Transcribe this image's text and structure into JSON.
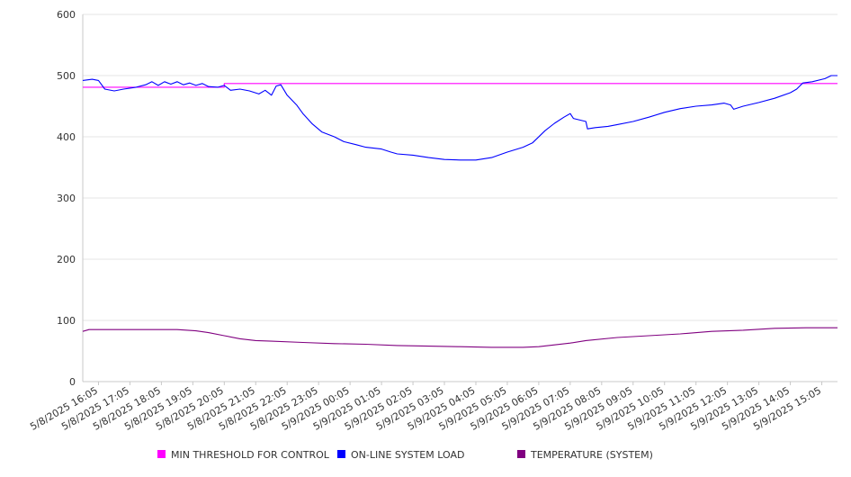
{
  "chart_data": {
    "type": "line",
    "title": "",
    "xlabel": "",
    "ylabel": "",
    "ylim": [
      0,
      600
    ],
    "y_ticks": [
      0,
      100,
      200,
      300,
      400,
      500,
      600
    ],
    "x_tick_labels": [
      "5/8/2025 16:05",
      "5/8/2025 17:05",
      "5/8/2025 18:05",
      "5/8/2025 19:05",
      "5/8/2025 20:05",
      "5/8/2025 21:05",
      "5/8/2025 22:05",
      "5/8/2025 23:05",
      "5/9/2025 00:05",
      "5/9/2025 01:05",
      "5/9/2025 02:05",
      "5/9/2025 03:05",
      "5/9/2025 04:05",
      "5/9/2025 05:05",
      "5/9/2025 06:05",
      "5/9/2025 07:05",
      "5/9/2025 08:05",
      "5/9/2025 09:05",
      "5/9/2025 10:05",
      "5/9/2025 11:05",
      "5/9/2025 12:05",
      "5/9/2025 13:05",
      "5/9/2025 14:05",
      "5/9/2025 15:05"
    ],
    "grid": "horizontal",
    "legend_position": "bottom",
    "series": [
      {
        "name": "MIN THRESHOLD FOR CONTROL",
        "color": "#ff00ff",
        "points": [
          [
            0,
            481
          ],
          [
            4.5,
            481
          ],
          [
            4.5,
            487
          ],
          [
            24,
            487
          ]
        ]
      },
      {
        "name": "ON-LINE SYSTEM LOAD",
        "color": "#0000ff",
        "points": [
          [
            0,
            492
          ],
          [
            0.3,
            494
          ],
          [
            0.5,
            492
          ],
          [
            0.7,
            478
          ],
          [
            1,
            475
          ],
          [
            1.3,
            478
          ],
          [
            1.7,
            481
          ],
          [
            2,
            485
          ],
          [
            2.2,
            490
          ],
          [
            2.4,
            484
          ],
          [
            2.6,
            490
          ],
          [
            2.8,
            486
          ],
          [
            3,
            490
          ],
          [
            3.2,
            485
          ],
          [
            3.4,
            488
          ],
          [
            3.6,
            484
          ],
          [
            3.8,
            487
          ],
          [
            4,
            482
          ],
          [
            4.3,
            481
          ],
          [
            4.5,
            484
          ],
          [
            4.7,
            476
          ],
          [
            5,
            478
          ],
          [
            5.3,
            475
          ],
          [
            5.6,
            470
          ],
          [
            5.8,
            476
          ],
          [
            6,
            468
          ],
          [
            6.15,
            483
          ],
          [
            6.3,
            485
          ],
          [
            6.5,
            468
          ],
          [
            6.8,
            452
          ],
          [
            7,
            438
          ],
          [
            7.3,
            421
          ],
          [
            7.6,
            408
          ],
          [
            8,
            400
          ],
          [
            8.3,
            392
          ],
          [
            8.7,
            387
          ],
          [
            9,
            383
          ],
          [
            9.5,
            380
          ],
          [
            9.8,
            375
          ],
          [
            10,
            372
          ],
          [
            10.5,
            370
          ],
          [
            11,
            366
          ],
          [
            11.5,
            363
          ],
          [
            12,
            362
          ],
          [
            12.5,
            362
          ],
          [
            13,
            366
          ],
          [
            13.5,
            375
          ],
          [
            14,
            383
          ],
          [
            14.3,
            390
          ],
          [
            14.7,
            410
          ],
          [
            15,
            422
          ],
          [
            15.3,
            432
          ],
          [
            15.5,
            438
          ],
          [
            15.6,
            430
          ],
          [
            16,
            425
          ],
          [
            16.05,
            413
          ],
          [
            16.3,
            415
          ],
          [
            16.7,
            417
          ],
          [
            17,
            420
          ],
          [
            17.5,
            425
          ],
          [
            18,
            432
          ],
          [
            18.5,
            440
          ],
          [
            19,
            446
          ],
          [
            19.5,
            450
          ],
          [
            20,
            452
          ],
          [
            20.4,
            455
          ],
          [
            20.6,
            452
          ],
          [
            20.7,
            445
          ],
          [
            21,
            450
          ],
          [
            21.5,
            456
          ],
          [
            22,
            463
          ],
          [
            22.5,
            472
          ],
          [
            22.7,
            478
          ],
          [
            22.9,
            488
          ],
          [
            23.2,
            490
          ],
          [
            23.6,
            495
          ],
          [
            23.8,
            500
          ],
          [
            24,
            500
          ]
        ]
      },
      {
        "name": "TEMPERATURE (SYSTEM)",
        "color": "#800080",
        "points": [
          [
            0,
            82
          ],
          [
            0.2,
            85
          ],
          [
            1,
            85
          ],
          [
            2,
            85
          ],
          [
            3,
            85
          ],
          [
            3.6,
            83
          ],
          [
            4,
            80
          ],
          [
            4.5,
            75
          ],
          [
            5,
            70
          ],
          [
            5.5,
            67
          ],
          [
            6,
            66
          ],
          [
            7,
            64
          ],
          [
            8,
            62
          ],
          [
            9,
            61
          ],
          [
            10,
            59
          ],
          [
            11,
            58
          ],
          [
            12,
            57
          ],
          [
            13,
            56
          ],
          [
            14,
            56
          ],
          [
            14.5,
            57
          ],
          [
            15,
            60
          ],
          [
            15.5,
            63
          ],
          [
            16,
            67
          ],
          [
            17,
            72
          ],
          [
            18,
            75
          ],
          [
            19,
            78
          ],
          [
            20,
            82
          ],
          [
            21,
            84
          ],
          [
            22,
            87
          ],
          [
            23,
            88
          ],
          [
            24,
            88
          ]
        ]
      }
    ]
  }
}
